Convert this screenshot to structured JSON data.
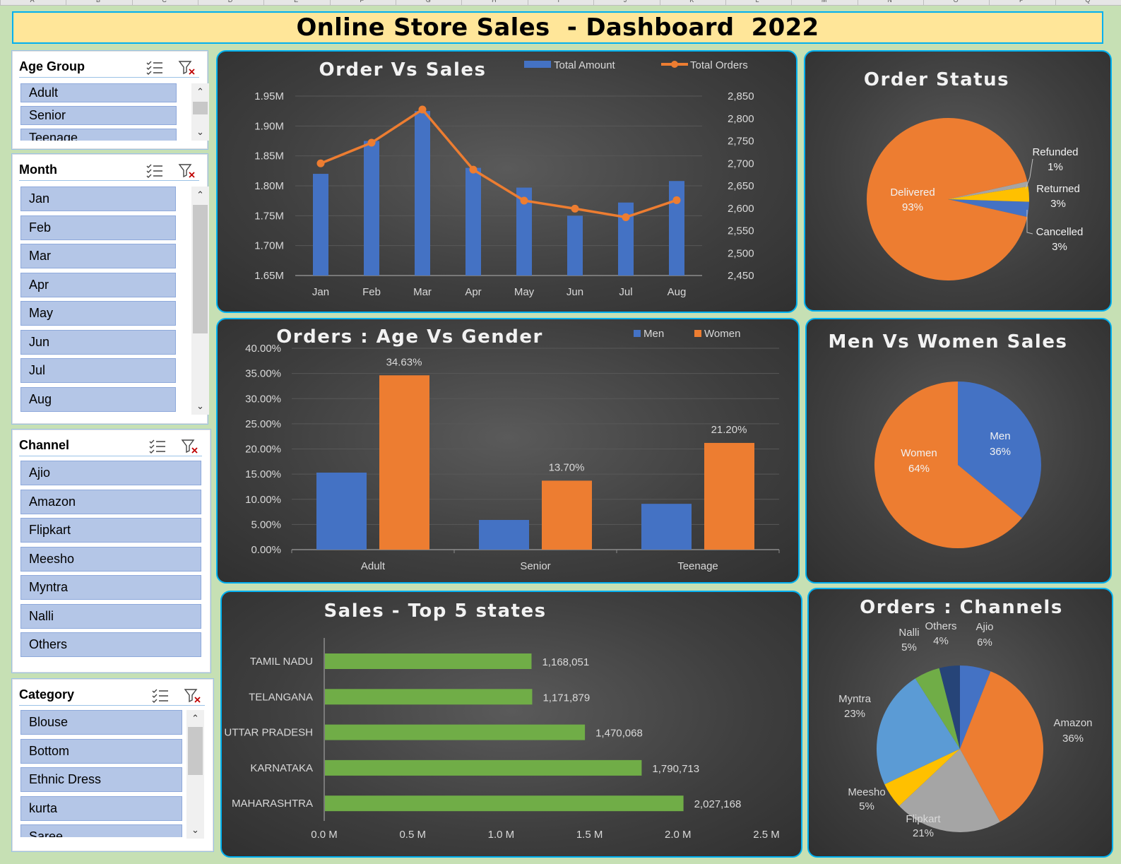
{
  "spreadsheet": {
    "column_letters": [
      "A",
      "B",
      "C",
      "D",
      "E",
      "F",
      "G",
      "H",
      "I",
      "J",
      "K",
      "L",
      "M",
      "N",
      "O",
      "P",
      "Q"
    ]
  },
  "dashboard": {
    "title": "Online Store Sales  - Dashboard  2022"
  },
  "slicers": {
    "age_group": {
      "title": "Age Group",
      "items": [
        "Adult",
        "Senior",
        "Teenage"
      ]
    },
    "month": {
      "title": "Month",
      "items": [
        "Jan",
        "Feb",
        "Mar",
        "Apr",
        "May",
        "Jun",
        "Jul",
        "Aug"
      ]
    },
    "channel": {
      "title": "Channel",
      "items": [
        "Ajio",
        "Amazon",
        "Flipkart",
        "Meesho",
        "Myntra",
        "Nalli",
        "Others"
      ]
    },
    "category": {
      "title": "Category",
      "items": [
        "Blouse",
        "Bottom",
        "Ethnic Dress",
        "kurta",
        "Saree"
      ]
    }
  },
  "icons": {
    "multi_select": "multi-select-icon",
    "clear_filter": "clear-filter-icon",
    "scroll_up": "chevron-up-icon",
    "scroll_down": "chevron-down-icon"
  },
  "colors": {
    "blue": "#4472c4",
    "orange": "#ed7d31",
    "gray": "#a5a5a5",
    "yellow": "#ffc000",
    "lightblue": "#5b9bd5",
    "green": "#70ad47",
    "navy": "#264478",
    "bar_green": "#70ad47",
    "accent_border": "#00b0f0",
    "title_bg": "#ffe699",
    "slicer_item": "#b4c6e7"
  },
  "chart_data": [
    {
      "id": "order_vs_sales",
      "type": "bar",
      "title": "Order Vs Sales",
      "categories": [
        "Jan",
        "Feb",
        "Mar",
        "Apr",
        "May",
        "Jun",
        "Jul",
        "Aug"
      ],
      "series": [
        {
          "name": "Total Amount",
          "type": "bar",
          "axis": "left",
          "values": [
            1820000,
            1875000,
            1925000,
            1830000,
            1797000,
            1750000,
            1772000,
            1808000
          ]
        },
        {
          "name": "Total Orders",
          "type": "line",
          "axis": "right",
          "values": [
            2700,
            2746,
            2820,
            2686,
            2617,
            2599,
            2580,
            2618
          ]
        }
      ],
      "y_left": {
        "min": 1650000,
        "max": 1950000,
        "ticks": [
          1650000,
          1700000,
          1750000,
          1800000,
          1850000,
          1900000,
          1950000
        ],
        "tick_labels": [
          "1.65M",
          "1.70M",
          "1.75M",
          "1.80M",
          "1.85M",
          "1.90M",
          "1.95M"
        ]
      },
      "y_right": {
        "min": 2450,
        "max": 2850,
        "ticks": [
          2450,
          2500,
          2550,
          2600,
          2650,
          2700,
          2750,
          2800,
          2850
        ],
        "tick_labels": [
          "2,450",
          "2,500",
          "2,550",
          "2,600",
          "2,650",
          "2,700",
          "2,750",
          "2,800",
          "2,850"
        ]
      },
      "legend": "top"
    },
    {
      "id": "order_status",
      "type": "pie",
      "title": "Order Status",
      "slices": [
        {
          "label": "Delivered",
          "percent_label": "93%",
          "value": 93
        },
        {
          "label": "Refunded",
          "percent_label": "1%",
          "value": 1
        },
        {
          "label": "Returned",
          "percent_label": "3%",
          "value": 3
        },
        {
          "label": "Cancelled",
          "percent_label": "3%",
          "value": 3
        }
      ]
    },
    {
      "id": "age_vs_gender",
      "type": "bar",
      "title": "Orders : Age Vs Gender",
      "categories": [
        "Adult",
        "Senior",
        "Teenage"
      ],
      "series": [
        {
          "name": "Men",
          "values": [
            15.3,
            5.9,
            9.1
          ]
        },
        {
          "name": "Women",
          "values": [
            34.63,
            13.7,
            21.2
          ],
          "data_labels": [
            "34.63%",
            "13.70%",
            "21.20%"
          ]
        }
      ],
      "y": {
        "min": 0,
        "max": 40,
        "ticks": [
          0,
          5,
          10,
          15,
          20,
          25,
          30,
          35,
          40
        ],
        "tick_labels": [
          "0.00%",
          "5.00%",
          "10.00%",
          "15.00%",
          "20.00%",
          "25.00%",
          "30.00%",
          "35.00%",
          "40.00%"
        ]
      },
      "legend": "top"
    },
    {
      "id": "men_vs_women",
      "type": "pie",
      "title": "Men Vs Women Sales",
      "slices": [
        {
          "label": "Men",
          "percent_label": "36%",
          "value": 36
        },
        {
          "label": "Women",
          "percent_label": "64%",
          "value": 64
        }
      ]
    },
    {
      "id": "top_states",
      "type": "bar",
      "orientation": "horizontal",
      "title": "Sales - Top 5 states",
      "categories": [
        "TAMIL NADU",
        "TELANGANA",
        "UTTAR PRADESH",
        "KARNATAKA",
        "MAHARASHTRA"
      ],
      "values": [
        1168051,
        1171879,
        1470068,
        1790713,
        2027168
      ],
      "data_labels": [
        "1,168,051",
        "1,171,879",
        "1,470,068",
        "1,790,713",
        "2,027,168"
      ],
      "x": {
        "min": 0,
        "max": 2500000,
        "ticks": [
          0,
          500000,
          1000000,
          1500000,
          2000000,
          2500000
        ],
        "tick_labels": [
          "0.0 M",
          "0.5 M",
          "1.0 M",
          "1.5 M",
          "2.0 M",
          "2.5 M"
        ]
      }
    },
    {
      "id": "channels",
      "type": "pie",
      "title": "Orders : Channels",
      "slices": [
        {
          "label": "Ajio",
          "percent_label": "6%",
          "value": 6
        },
        {
          "label": "Amazon",
          "percent_label": "36%",
          "value": 36
        },
        {
          "label": "Flipkart",
          "percent_label": "21%",
          "value": 21
        },
        {
          "label": "Meesho",
          "percent_label": "5%",
          "value": 5
        },
        {
          "label": "Myntra",
          "percent_label": "23%",
          "value": 23
        },
        {
          "label": "Nalli",
          "percent_label": "5%",
          "value": 5
        },
        {
          "label": "Others",
          "percent_label": "4%",
          "value": 4
        }
      ]
    }
  ]
}
